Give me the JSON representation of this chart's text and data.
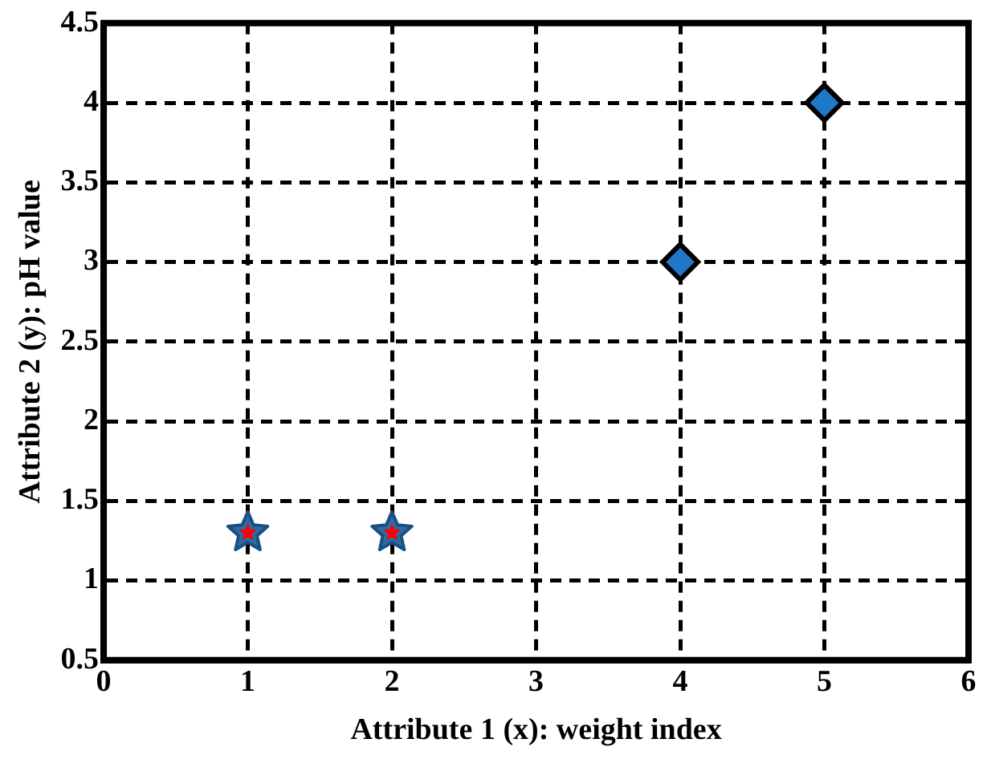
{
  "chart_data": {
    "type": "scatter",
    "xlabel": "Attribute 1 (x): weight index",
    "ylabel": "Attribute 2 (y): pH value",
    "series": [
      {
        "color": "#2a6ca8",
        "marker": "star",
        "x": [
          1,
          2
        ],
        "values": [
          1.3,
          1.3
        ]
      },
      {
        "color": "#ff0000",
        "marker": "star",
        "x": [
          1,
          2
        ],
        "values": [
          1.3,
          1.3
        ]
      },
      {
        "color": "#1f78c8",
        "marker": "diamond",
        "x": [
          4,
          5
        ],
        "values": [
          3,
          4
        ]
      }
    ],
    "xlim": [
      0,
      6
    ],
    "xticks": [
      0,
      1,
      2,
      3,
      4,
      5,
      6
    ],
    "ylim": [
      0.5,
      4.5
    ],
    "yticks": [
      0.5,
      1,
      1.5,
      2,
      2.5,
      3,
      3.5,
      4,
      4.5
    ],
    "grid": true,
    "legend": false
  }
}
